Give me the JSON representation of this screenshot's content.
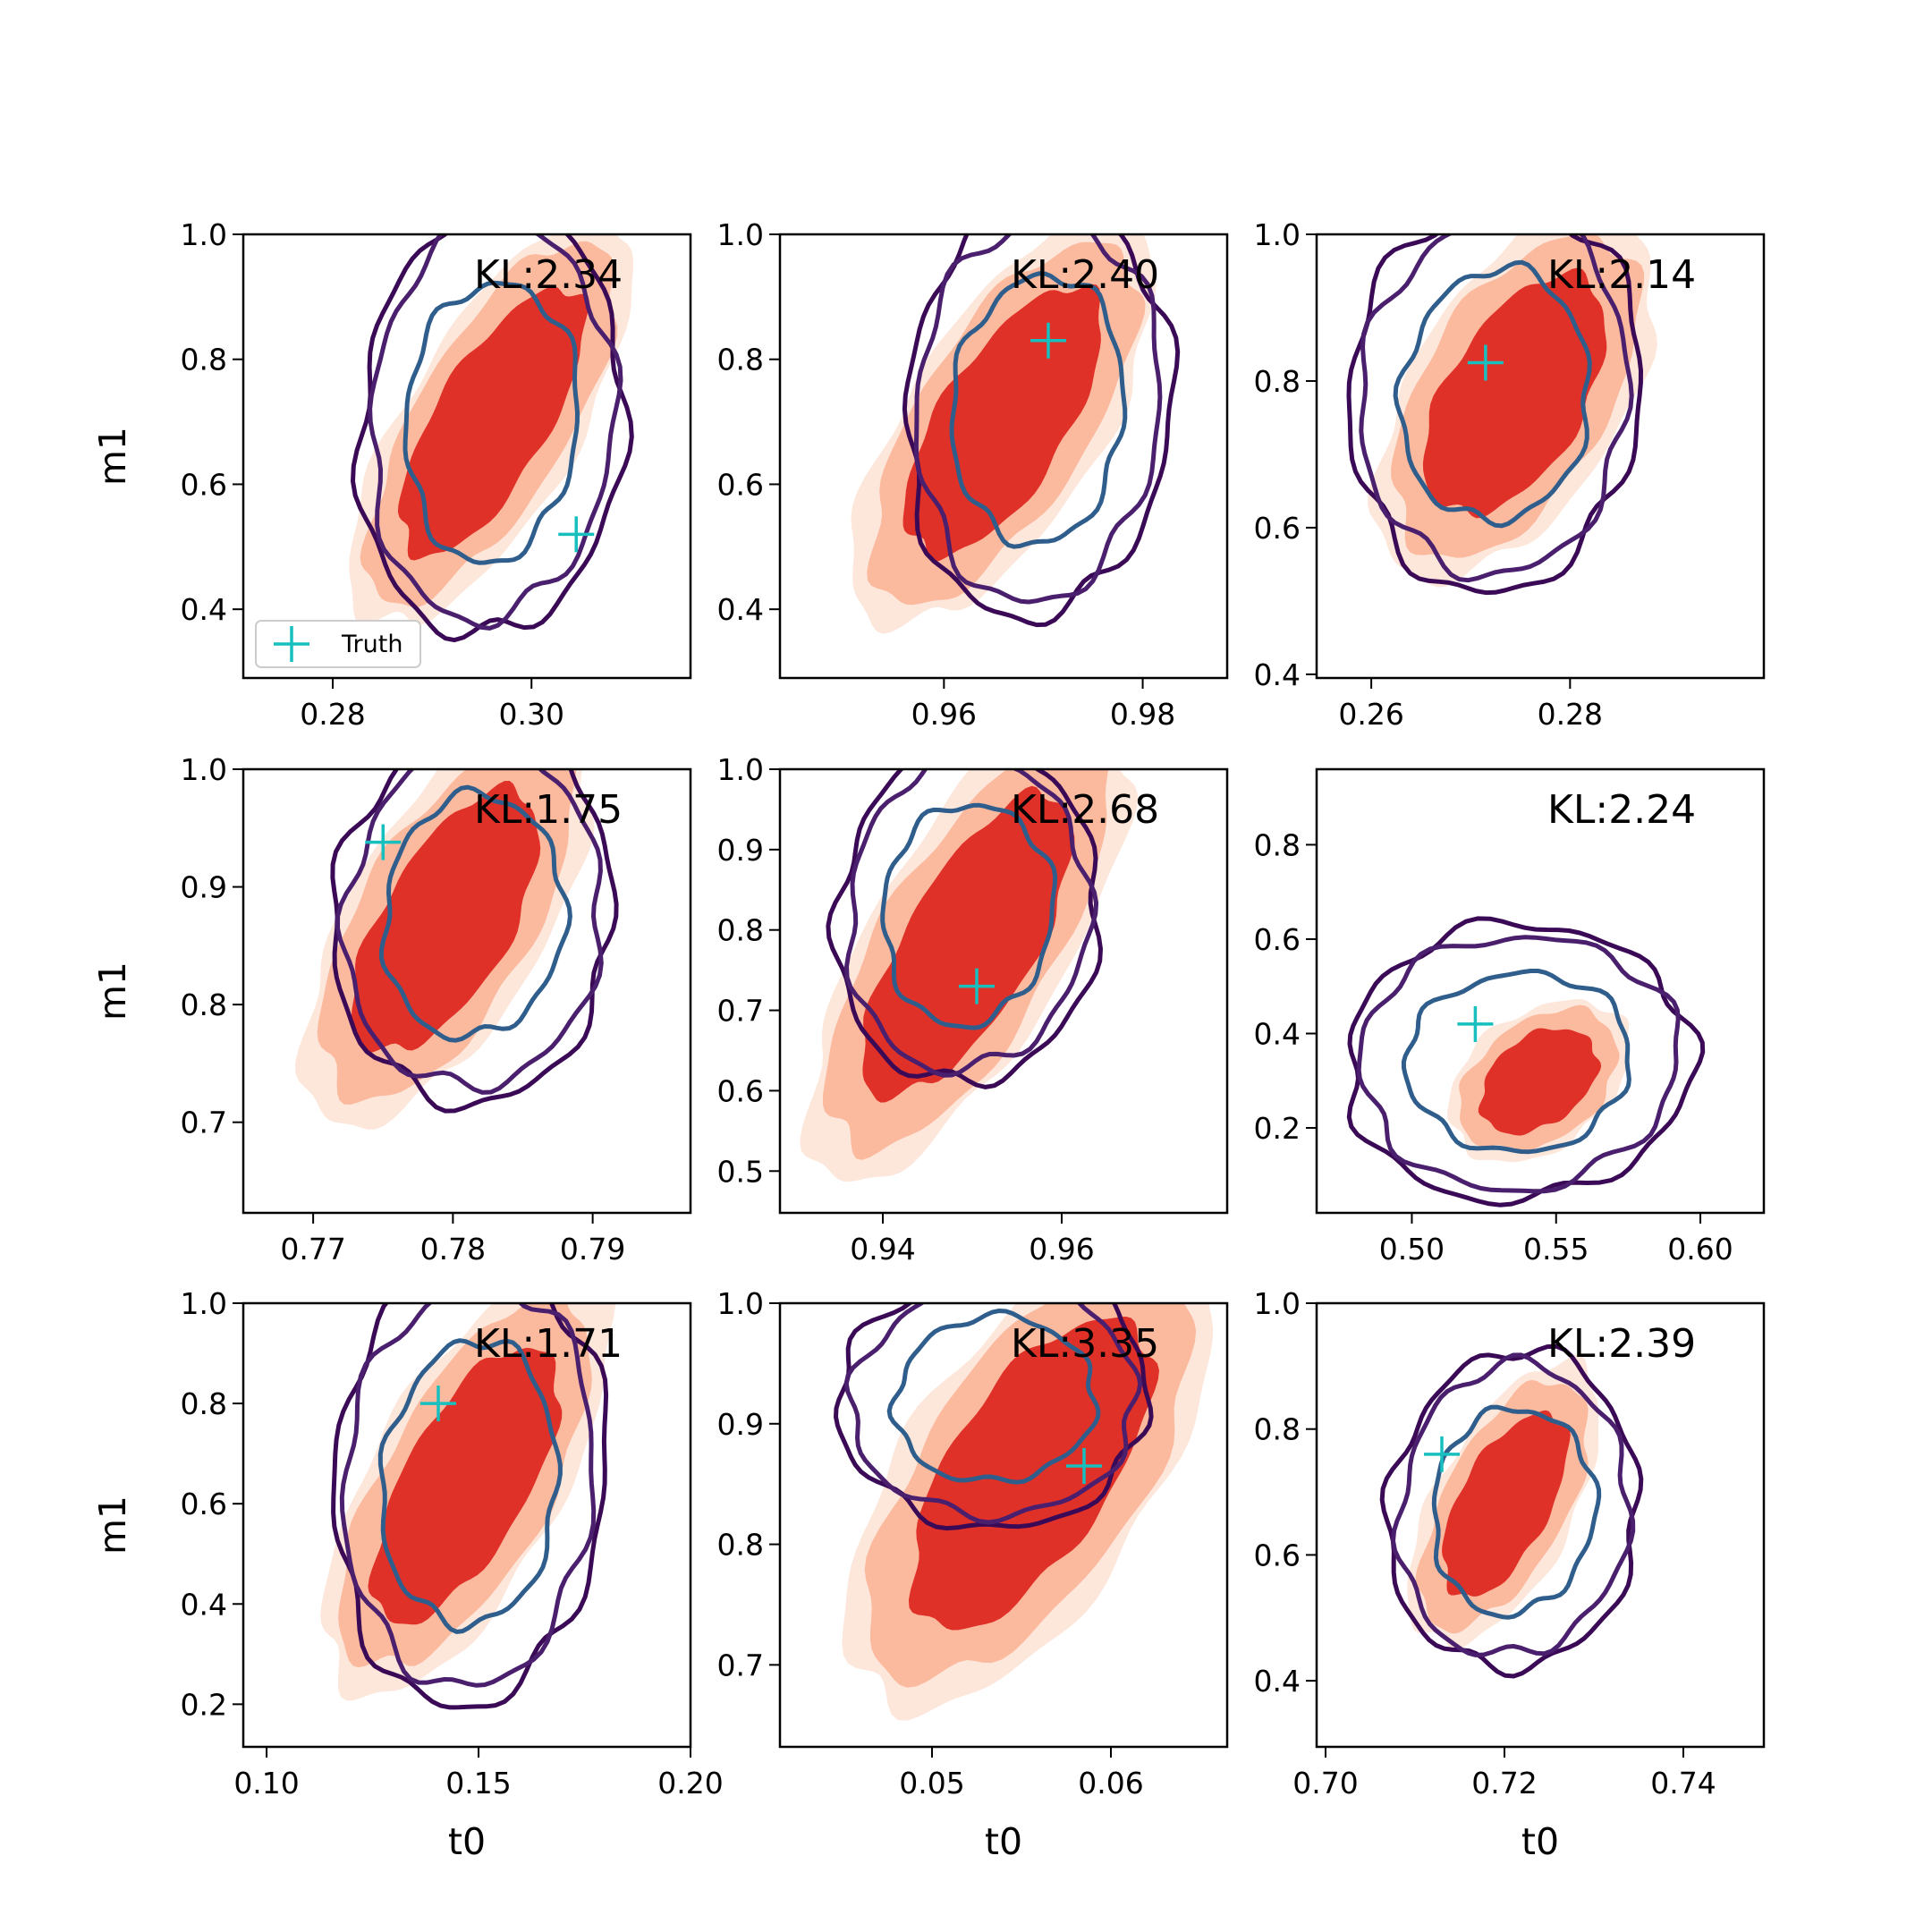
{
  "figure": {
    "legend": {
      "label": "Truth",
      "marker_color": "#17bfbf",
      "placement": "lower-left",
      "panel": 0
    }
  },
  "colors": {
    "fill_levels": [
      "#fde6da",
      "#fbb99e",
      "#e03128"
    ],
    "contour_outer": "#3b0a57",
    "contour_middle": "#4a1f6e",
    "contour_inner": "#2f5e8c",
    "truth_marker": "#17bfbf"
  },
  "chart_data": [
    {
      "type": "contour",
      "xlabel": "",
      "ylabel": "m1",
      "xlim": [
        0.271,
        0.316
      ],
      "ylim": [
        0.29,
        1.0
      ],
      "xticks": [
        0.28,
        0.3
      ],
      "xtick_labels": [
        "0.28",
        "0.30"
      ],
      "yticks": [
        0.4,
        0.6,
        0.8,
        1.0
      ],
      "ytick_labels": [
        "0.4",
        "0.6",
        "0.8",
        "1.0"
      ],
      "annotation": "KL:2.34",
      "truth": [
        0.3045,
        0.52
      ],
      "filled_centroid": [
        0.296,
        0.7
      ],
      "filled_radii": [
        0.0075,
        0.25
      ],
      "filled_tilt": 0.55,
      "contour_centroid": [
        0.296,
        0.7
      ],
      "contour_radii": [
        0.01,
        0.26
      ]
    },
    {
      "type": "contour",
      "xlabel": "",
      "ylabel": "",
      "xlim": [
        0.9435,
        0.9885
      ],
      "ylim": [
        0.29,
        1.0
      ],
      "xticks": [
        0.96,
        0.98
      ],
      "xtick_labels": [
        "0.96",
        "0.98"
      ],
      "yticks": [
        0.4,
        0.6,
        0.8,
        1.0
      ],
      "ytick_labels": [
        "0.4",
        "0.6",
        "0.8",
        "1.0"
      ],
      "annotation": "KL:2.40",
      "truth": [
        0.9705,
        0.83
      ],
      "filled_centroid": [
        0.966,
        0.7
      ],
      "filled_radii": [
        0.0085,
        0.25
      ],
      "filled_tilt": 0.55,
      "contour_centroid": [
        0.9695,
        0.72
      ],
      "contour_radii": [
        0.01,
        0.25
      ]
    },
    {
      "type": "contour",
      "xlabel": "",
      "ylabel": "",
      "xlim": [
        0.2545,
        0.2995
      ],
      "ylim": [
        0.395,
        1.0
      ],
      "xticks": [
        0.26,
        0.28
      ],
      "xtick_labels": [
        "0.26",
        "0.28"
      ],
      "yticks": [
        0.4,
        0.6,
        0.8,
        1.0
      ],
      "ytick_labels": [
        "0.4",
        "0.6",
        "0.8",
        "1.0"
      ],
      "annotation": "KL:2.14",
      "truth": [
        0.2715,
        0.825
      ],
      "filled_centroid": [
        0.2745,
        0.78
      ],
      "filled_radii": [
        0.009,
        0.19
      ],
      "filled_tilt": 0.45,
      "contour_centroid": [
        0.2725,
        0.78
      ],
      "contour_radii": [
        0.011,
        0.2
      ]
    },
    {
      "type": "contour",
      "xlabel": "",
      "ylabel": "m1",
      "xlim": [
        0.765,
        0.797
      ],
      "ylim": [
        0.623,
        1.0
      ],
      "xticks": [
        0.77,
        0.78,
        0.79
      ],
      "xtick_labels": [
        "0.77",
        "0.78",
        "0.79"
      ],
      "yticks": [
        0.7,
        0.8,
        0.9,
        1.0
      ],
      "ytick_labels": [
        "0.7",
        "0.8",
        "0.9",
        "1.0"
      ],
      "annotation": "KL:1.75",
      "truth": [
        0.775,
        0.938
      ],
      "filled_centroid": [
        0.7795,
        0.87
      ],
      "filled_radii": [
        0.006,
        0.13
      ],
      "filled_tilt": 0.5,
      "contour_centroid": [
        0.7815,
        0.875
      ],
      "contour_radii": [
        0.0075,
        0.12
      ]
    },
    {
      "type": "contour",
      "xlabel": "",
      "ylabel": "",
      "xlim": [
        0.9285,
        0.9785
      ],
      "ylim": [
        0.448,
        1.0
      ],
      "xticks": [
        0.94,
        0.96
      ],
      "xtick_labels": [
        "0.94",
        "0.96"
      ],
      "yticks": [
        0.5,
        0.6,
        0.7,
        0.8,
        0.9,
        1.0
      ],
      "ytick_labels": [
        "0.5",
        "0.6",
        "0.7",
        "0.8",
        "0.9",
        "1.0"
      ],
      "annotation": "KL:2.68",
      "truth": [
        0.9505,
        0.73
      ],
      "filled_centroid": [
        0.9495,
        0.78
      ],
      "filled_radii": [
        0.0095,
        0.22
      ],
      "filled_tilt": 0.55,
      "contour_centroid": [
        0.9495,
        0.82
      ],
      "contour_radii": [
        0.011,
        0.16
      ]
    },
    {
      "type": "contour",
      "xlabel": "",
      "ylabel": "",
      "xlim": [
        0.467,
        0.622
      ],
      "ylim": [
        0.02,
        0.96
      ],
      "xticks": [
        0.5,
        0.55,
        0.6
      ],
      "xtick_labels": [
        "0.50",
        "0.55",
        "0.60"
      ],
      "yticks": [
        0.2,
        0.4,
        0.6,
        0.8
      ],
      "ytick_labels": [
        "0.2",
        "0.4",
        "0.6",
        "0.8"
      ],
      "annotation": "KL:2.24",
      "truth": [
        0.522,
        0.42
      ],
      "filled_centroid": [
        0.544,
        0.3
      ],
      "filled_radii": [
        0.022,
        0.13
      ],
      "filled_tilt": 0.45,
      "contour_centroid": [
        0.537,
        0.34
      ],
      "contour_radii": [
        0.045,
        0.22
      ]
    },
    {
      "type": "contour",
      "xlabel": "t0",
      "ylabel": "m1",
      "xlim": [
        0.0945,
        0.2
      ],
      "ylim": [
        0.115,
        1.0
      ],
      "xticks": [
        0.1,
        0.15,
        0.2
      ],
      "xtick_labels": [
        "0.10",
        "0.15",
        "0.20"
      ],
      "yticks": [
        0.2,
        0.4,
        0.6,
        0.8,
        1.0
      ],
      "ytick_labels": [
        "0.2",
        "0.4",
        "0.6",
        "0.8",
        "1.0"
      ],
      "annotation": "KL:1.71",
      "truth": [
        0.1405,
        0.8
      ],
      "filled_centroid": [
        0.147,
        0.64
      ],
      "filled_radii": [
        0.019,
        0.32
      ],
      "filled_tilt": 0.5,
      "contour_centroid": [
        0.148,
        0.64
      ],
      "contour_radii": [
        0.024,
        0.33
      ]
    },
    {
      "type": "contour",
      "xlabel": "t0",
      "ylabel": "",
      "xlim": [
        0.0415,
        0.0665
      ],
      "ylim": [
        0.632,
        1.0
      ],
      "xticks": [
        0.05,
        0.06
      ],
      "xtick_labels": [
        "0.05",
        "0.06"
      ],
      "yticks": [
        0.7,
        0.8,
        0.9,
        1.0
      ],
      "ytick_labels": [
        "0.7",
        "0.8",
        "0.9",
        "1.0"
      ],
      "annotation": "KL:3.35",
      "truth": [
        0.0585,
        0.865
      ],
      "filled_centroid": [
        0.0555,
        0.86
      ],
      "filled_radii": [
        0.006,
        0.15
      ],
      "filled_tilt": 0.55,
      "contour_centroid": [
        0.0535,
        0.92
      ],
      "contour_radii": [
        0.0065,
        0.08
      ]
    },
    {
      "type": "contour",
      "xlabel": "t0",
      "ylabel": "",
      "xlim": [
        0.699,
        0.749
      ],
      "ylim": [
        0.295,
        1.0
      ],
      "xticks": [
        0.7,
        0.72,
        0.74
      ],
      "xtick_labels": [
        "0.70",
        "0.72",
        "0.74"
      ],
      "yticks": [
        0.4,
        0.6,
        0.8,
        1.0
      ],
      "ytick_labels": [
        "0.4",
        "0.6",
        "0.8",
        "1.0"
      ],
      "annotation": "KL:2.39",
      "truth": [
        0.713,
        0.76
      ],
      "filled_centroid": [
        0.72,
        0.68
      ],
      "filled_radii": [
        0.0065,
        0.17
      ],
      "filled_tilt": 0.45,
      "contour_centroid": [
        0.721,
        0.67
      ],
      "contour_radii": [
        0.0105,
        0.19
      ]
    }
  ]
}
